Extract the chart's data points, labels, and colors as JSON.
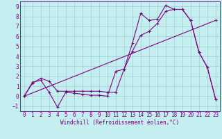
{
  "xlabel": "Windchill (Refroidissement éolien,°C)",
  "bg_color": "#c5eef0",
  "grid_color": "#9dd0d4",
  "line_color": "#800080",
  "spine_color": "#800080",
  "xlim": [
    -0.5,
    23.5
  ],
  "ylim": [
    -1.5,
    9.5
  ],
  "xticks": [
    0,
    1,
    2,
    3,
    4,
    5,
    6,
    7,
    8,
    9,
    10,
    11,
    12,
    13,
    14,
    15,
    16,
    17,
    18,
    19,
    20,
    21,
    22,
    23
  ],
  "yticks": [
    -1,
    0,
    1,
    2,
    3,
    4,
    5,
    6,
    7,
    8,
    9
  ],
  "series": [
    {
      "x": [
        0,
        1,
        2,
        3,
        4,
        5,
        6,
        7,
        8,
        9,
        10,
        11,
        12,
        13,
        14,
        15,
        16,
        17,
        18,
        19,
        20,
        21,
        22,
        23
      ],
      "y": [
        0.0,
        1.4,
        1.6,
        0.4,
        -1.1,
        0.4,
        0.3,
        0.2,
        0.1,
        0.1,
        0.0,
        2.5,
        2.7,
        5.3,
        8.3,
        7.6,
        7.7,
        9.1,
        8.7,
        8.7,
        7.6,
        4.4,
        2.9,
        -0.3
      ]
    },
    {
      "x": [
        0,
        1,
        2,
        3,
        4,
        5,
        6,
        7,
        8,
        9,
        10,
        11,
        12,
        13,
        14,
        15,
        16,
        17,
        18,
        19,
        20,
        21,
        22,
        23
      ],
      "y": [
        0.0,
        1.3,
        1.8,
        1.5,
        0.5,
        0.5,
        0.5,
        0.5,
        0.5,
        0.5,
        0.4,
        0.4,
        2.7,
        4.5,
        6.1,
        6.5,
        7.3,
        8.5,
        8.7,
        8.7,
        7.6,
        4.4,
        2.9,
        -0.3
      ]
    },
    {
      "x": [
        0,
        23
      ],
      "y": [
        0.0,
        7.6
      ]
    }
  ],
  "tick_fontsize": 5.5,
  "xlabel_fontsize": 5.5,
  "marker": "+",
  "markersize": 3.5,
  "linewidth": 0.8
}
